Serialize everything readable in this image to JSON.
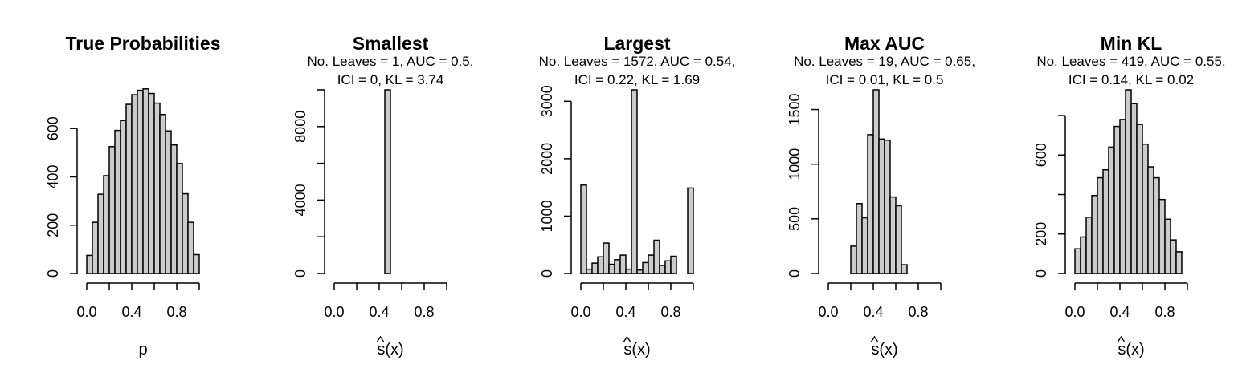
{
  "chart_data": [
    {
      "type": "bar",
      "title": "True Probabilities",
      "subtitle": [],
      "xlabel": "p",
      "xlabel_hat": false,
      "xlim": [
        0,
        1
      ],
      "ylim": [
        0,
        760
      ],
      "xticks": [
        "0.0",
        "0.4",
        "0.8"
      ],
      "yticks": [
        "0",
        "200",
        "400",
        "600"
      ],
      "yaxis_top": 600,
      "bin_width": 0.05,
      "values": [
        75,
        212,
        328,
        405,
        525,
        592,
        633,
        700,
        740,
        758,
        764,
        745,
        705,
        658,
        590,
        532,
        455,
        330,
        212,
        78
      ]
    },
    {
      "type": "bar",
      "title": "Smallest",
      "subtitle": [
        "No. Leaves = 1, AUC = 0.5,",
        "ICI = 0, KL = 3.74"
      ],
      "xlabel": "s(x)",
      "xlabel_hat": true,
      "xlim": [
        0,
        1
      ],
      "ylim": [
        0,
        10000
      ],
      "xticks": [
        "0.0",
        "0.4",
        "0.8"
      ],
      "yticks": [
        "0",
        "4000",
        "8000"
      ],
      "yaxis_top": 10000,
      "bin_width": 0.05,
      "values": [
        0,
        0,
        0,
        0,
        0,
        0,
        0,
        0,
        0,
        10000,
        0,
        0,
        0,
        0,
        0,
        0,
        0,
        0,
        0,
        0
      ]
    },
    {
      "type": "bar",
      "title": "Largest",
      "subtitle": [
        "No. Leaves = 1572, AUC = 0.54,",
        "ICI = 0.22, KL = 1.69"
      ],
      "xlabel": "s(x)",
      "xlabel_hat": true,
      "xlim": [
        0,
        1
      ],
      "ylim": [
        0,
        3200
      ],
      "xticks": [
        "0.0",
        "0.4",
        "0.8"
      ],
      "yticks": [
        "0",
        "1000",
        "2000",
        "3000"
      ],
      "yaxis_top": 3000,
      "bin_width": 0.05,
      "values": [
        1540,
        75,
        180,
        290,
        530,
        160,
        240,
        320,
        75,
        3200,
        60,
        190,
        320,
        580,
        140,
        220,
        300,
        0,
        0,
        1490
      ]
    },
    {
      "type": "bar",
      "title": "Max AUC",
      "subtitle": [
        "No. Leaves = 19, AUC = 0.65,",
        "ICI = 0.01, KL = 0.5"
      ],
      "xlabel": "s(x)",
      "xlabel_hat": true,
      "xlim": [
        0,
        1
      ],
      "ylim": [
        0,
        1680
      ],
      "xticks": [
        "0.0",
        "0.4",
        "0.8"
      ],
      "yticks": [
        "0",
        "500",
        "1000",
        "1500"
      ],
      "yaxis_top": 1500,
      "bin_width": 0.05,
      "values": [
        0,
        0,
        0,
        0,
        250,
        640,
        510,
        1270,
        1680,
        1230,
        1220,
        700,
        620,
        80,
        0,
        0,
        0,
        0,
        0,
        0
      ]
    },
    {
      "type": "bar",
      "title": "Min KL",
      "subtitle": [
        "No. Leaves = 419, AUC = 0.55,",
        "ICI = 0.14, KL = 0.02"
      ],
      "xlabel": "s(x)",
      "xlabel_hat": true,
      "xlim": [
        0,
        1
      ],
      "ylim": [
        0,
        930
      ],
      "xticks": [
        "0.0",
        "0.4",
        "0.8"
      ],
      "yticks": [
        "0",
        "200",
        "600"
      ],
      "yaxis_top": 800,
      "bin_width": 0.05,
      "values": [
        125,
        185,
        285,
        395,
        485,
        525,
        640,
        745,
        780,
        930,
        860,
        755,
        655,
        540,
        485,
        375,
        275,
        170,
        110,
        0
      ]
    }
  ]
}
